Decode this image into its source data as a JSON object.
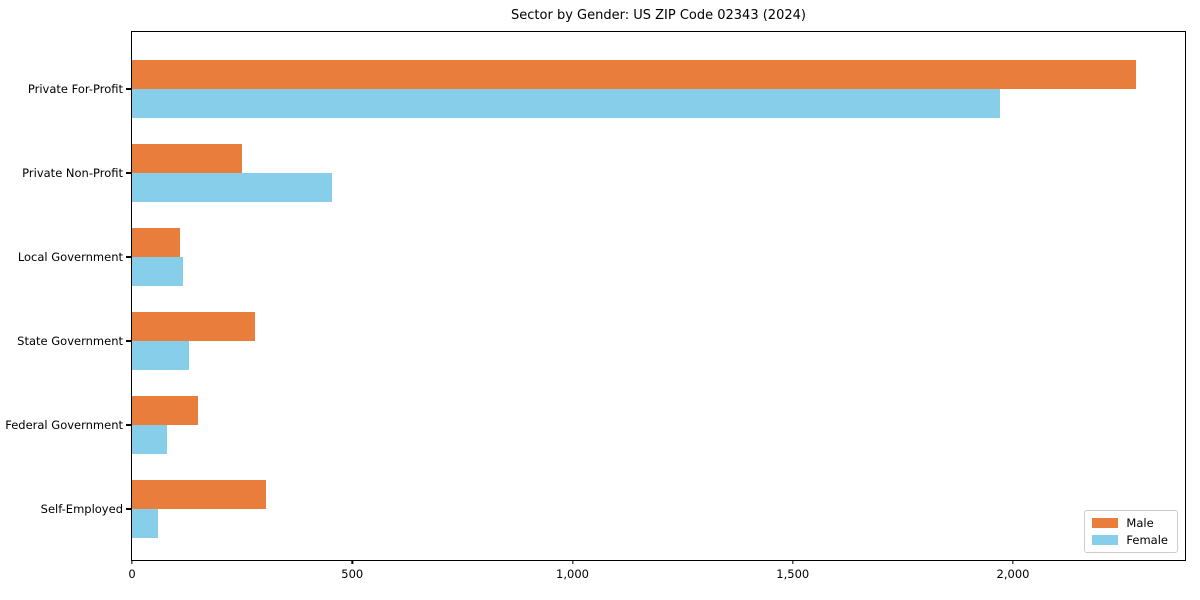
{
  "chart_data": {
    "type": "bar",
    "orientation": "horizontal",
    "title": "Sector by Gender: US ZIP Code 02343 (2024)",
    "categories": [
      "Private For-Profit",
      "Private Non-Profit",
      "Local Government",
      "State Government",
      "Federal Government",
      "Self-Employed"
    ],
    "series": [
      {
        "name": "Male",
        "color": "#E87D3C",
        "values": [
          2280,
          250,
          110,
          280,
          150,
          305
        ]
      },
      {
        "name": "Female",
        "color": "#87CEEB",
        "values": [
          1970,
          455,
          115,
          130,
          80,
          60
        ]
      }
    ],
    "xlabel": "",
    "ylabel": "",
    "xlim": [
      0,
      2395
    ],
    "xticks": [
      0,
      500,
      1000,
      1500,
      2000
    ],
    "xtick_labels": [
      "0",
      "500",
      "1,000",
      "1,500",
      "2,000"
    ],
    "grid": false,
    "legend": {
      "position": "lower right",
      "entries": [
        "Male",
        "Female"
      ]
    }
  }
}
